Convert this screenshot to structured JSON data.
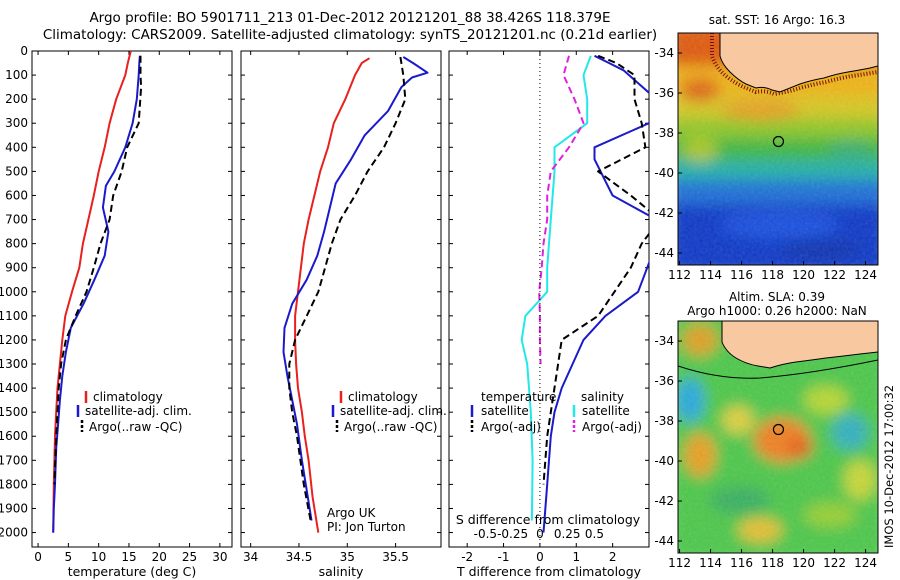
{
  "figure": {
    "title_line1": "Argo profile: BO 5901711_213 01-Dec-2012 20121201_88 38.426S 118.379E",
    "title_line2": "Climatology: CARS2009. Satellite-adjusted climatology: synTS_20121201.nc (0.21d earlier)",
    "credit": "IMOS 10-Dec-2012 17:00:32"
  },
  "colors": {
    "climatology": "#e8201e",
    "satellite": "#1a1acc",
    "argo": "#000000",
    "satellite_salinity": "#22e8e8",
    "argo_salinity_diff": "#e020e0",
    "land": "#f8c8a0"
  },
  "chart_data": [
    {
      "type": "line",
      "panel": "temperature",
      "xlabel": "temperature (deg C)",
      "ylabel": "",
      "xlim": [
        -1,
        32
      ],
      "ylim": [
        2060,
        0
      ],
      "xticks": [
        0,
        5,
        10,
        15,
        20,
        25,
        30
      ],
      "yticks": [
        0,
        100,
        200,
        300,
        400,
        500,
        600,
        700,
        800,
        900,
        1000,
        1100,
        1200,
        1300,
        1400,
        1500,
        1600,
        1700,
        1800,
        1900,
        2000
      ],
      "legend": [
        "climatology",
        "satellite-adj. clim.",
        "Argo(..raw -QC)"
      ],
      "legend_position": "bottom-right",
      "series": [
        {
          "name": "climatology",
          "style": "solid",
          "x": [
            15.3,
            14.8,
            14.4,
            12.9,
            11.8,
            11.0,
            10.0,
            9.2,
            8.3,
            7.4,
            6.8,
            5.6,
            4.5,
            4.0,
            3.6,
            3.2,
            3.0,
            2.8,
            2.6,
            2.5
          ],
          "y": [
            0,
            50,
            100,
            200,
            300,
            400,
            500,
            600,
            700,
            800,
            900,
            1000,
            1100,
            1200,
            1300,
            1400,
            1500,
            1600,
            1800,
            2000
          ]
        },
        {
          "name": "satellite-adj. clim.",
          "style": "solid",
          "x": [
            16.8,
            16.7,
            16.6,
            16.3,
            15.6,
            14.4,
            12.6,
            11.2,
            10.7,
            11.6,
            11.0,
            9.3,
            7.5,
            5.4,
            4.6,
            4.0,
            3.6,
            3.3,
            3.0,
            2.8,
            2.6,
            2.5
          ],
          "y": [
            20,
            50,
            100,
            200,
            300,
            400,
            500,
            560,
            650,
            750,
            850,
            950,
            1050,
            1150,
            1250,
            1350,
            1450,
            1550,
            1650,
            1800,
            1900,
            2000
          ]
        },
        {
          "name": "Argo(..raw -QC)",
          "style": "dashed",
          "x": [
            16.9,
            16.9,
            17.0,
            16.6,
            14.7,
            13.8,
            12.4,
            11.8,
            10.3,
            9.2,
            8.0,
            6.2,
            4.6,
            3.8,
            3.4,
            3.2,
            3.0,
            2.7
          ],
          "y": [
            20,
            100,
            150,
            300,
            400,
            500,
            600,
            700,
            800,
            900,
            1000,
            1100,
            1200,
            1300,
            1400,
            1500,
            1600,
            1800
          ]
        }
      ]
    },
    {
      "type": "line",
      "panel": "salinity",
      "xlabel": "salinity",
      "ylabel": "",
      "xlim": [
        33.9,
        35.97
      ],
      "ylim": [
        2060,
        0
      ],
      "xticks": [
        34,
        34.5,
        35,
        35.5
      ],
      "legend": [
        "climatology",
        "satellite-adj. clim.",
        "Argo(..raw -QC)"
      ],
      "legend_position": "bottom-right",
      "annotations": [
        "Argo UK",
        "PI: Jon Turton"
      ],
      "series": [
        {
          "name": "climatology",
          "style": "solid",
          "x": [
            35.23,
            35.15,
            35.08,
            34.98,
            34.86,
            34.8,
            34.72,
            34.66,
            34.6,
            34.55,
            34.52,
            34.49,
            34.46,
            34.46,
            34.47,
            34.49,
            34.53,
            34.56,
            34.6,
            34.64,
            34.7
          ],
          "y": [
            30,
            50,
            100,
            200,
            300,
            400,
            500,
            600,
            700,
            800,
            900,
            1000,
            1100,
            1200,
            1300,
            1400,
            1500,
            1600,
            1700,
            1850,
            2000
          ]
        },
        {
          "name": "satellite-adj. clim.",
          "style": "solid",
          "x": [
            35.58,
            35.68,
            35.83,
            35.67,
            35.56,
            35.42,
            35.18,
            35.04,
            34.88,
            34.82,
            34.76,
            34.69,
            34.58,
            34.43,
            34.35,
            34.34,
            34.38,
            34.43,
            34.48,
            34.53,
            34.59,
            34.63
          ],
          "y": [
            25,
            50,
            90,
            110,
            150,
            250,
            350,
            450,
            550,
            650,
            750,
            850,
            950,
            1050,
            1150,
            1250,
            1350,
            1450,
            1550,
            1700,
            1850,
            1950
          ]
        },
        {
          "name": "Argo(..raw -QC)",
          "style": "dashed",
          "x": [
            35.55,
            35.58,
            35.6,
            35.5,
            35.38,
            35.21,
            35.08,
            34.93,
            34.84,
            34.77,
            34.7,
            34.58,
            34.46,
            34.4,
            34.4,
            34.43,
            34.48,
            34.55,
            34.62
          ],
          "y": [
            25,
            100,
            200,
            300,
            400,
            500,
            600,
            700,
            800,
            900,
            1000,
            1100,
            1200,
            1300,
            1400,
            1500,
            1600,
            1800,
            1950
          ]
        }
      ]
    },
    {
      "type": "line",
      "panel": "difference",
      "xlabel": "T difference from climatology",
      "top_xlabel": "S difference from climatology",
      "xlim": [
        -2.5,
        3.0
      ],
      "ylim": [
        2060,
        0
      ],
      "xticks": [
        -2,
        -1,
        0,
        1,
        2
      ],
      "top_xticks": [
        "-0.5",
        "-0.25",
        "0",
        "0.25",
        "0.5"
      ],
      "legend_title_temperature": "temperature",
      "legend_title_salinity": "salinity",
      "legend": [
        "satellite",
        "Argo(-adj)",
        "satellite",
        "Argo(-adj)"
      ],
      "legend_position": "bottom-right",
      "series": [
        {
          "name": "satellite",
          "group": "temperature",
          "style": "solid",
          "x": [
            1.5,
            1.9,
            2.3,
            3.2,
            3.0,
            1.5,
            1.5,
            2.0,
            3.2,
            3.2,
            2.7,
            1.8,
            1.2,
            0.9,
            0.6,
            0.4,
            0.3,
            0.2,
            0.1
          ],
          "y": [
            20,
            50,
            80,
            200,
            300,
            400,
            450,
            600,
            700,
            800,
            1000,
            1100,
            1200,
            1300,
            1400,
            1500,
            1600,
            1800,
            2000
          ]
        },
        {
          "name": "Argo(-adj)",
          "group": "temperature",
          "style": "dashed",
          "x": [
            1.6,
            2.1,
            2.6,
            2.6,
            2.8,
            2.9,
            1.6,
            2.5,
            3.3,
            2.8,
            2.5,
            1.6,
            0.6,
            0.5,
            0.3,
            0.2,
            0.1
          ],
          "y": [
            20,
            50,
            100,
            200,
            300,
            400,
            500,
            600,
            700,
            800,
            900,
            1100,
            1200,
            1300,
            1500,
            1600,
            1800
          ]
        },
        {
          "name": "satellite",
          "group": "salinity",
          "style": "solid",
          "x": [
            1.4,
            1.2,
            1.3,
            1.3,
            0.4,
            0.4,
            0.3,
            0.25,
            0.2,
            0.2,
            -0.4,
            -0.5,
            -0.35,
            -0.25,
            -0.2,
            -0.22
          ],
          "y": [
            20,
            100,
            200,
            300,
            400,
            500,
            700,
            800,
            900,
            1000,
            1100,
            1200,
            1300,
            1500,
            1700,
            1950
          ]
        },
        {
          "name": "Argo(-adj)",
          "group": "salinity",
          "style": "dashed",
          "x": [
            0.8,
            0.65,
            0.95,
            1.2,
            0.8,
            0.3,
            0.2,
            0.2,
            0.1,
            0.05,
            -0.02,
            0.0,
            0.0,
            0.02
          ],
          "y": [
            20,
            100,
            200,
            300,
            400,
            500,
            600,
            700,
            800,
            900,
            1000,
            1100,
            1200,
            1300
          ]
        }
      ]
    },
    {
      "type": "heatmap",
      "panel": "sst_map",
      "title": "sat. SST: 16  Argo: 16.3",
      "xticks": [
        112,
        114,
        116,
        118,
        120,
        122,
        124
      ],
      "yticks": [
        -34,
        -36,
        -38,
        -40,
        -42,
        -44
      ],
      "xlim": [
        111.9,
        124.8
      ],
      "ylim": [
        -44.6,
        -33.0
      ],
      "marker": {
        "lon": 118.379,
        "lat": -38.426
      },
      "field": "sea surface temperature"
    },
    {
      "type": "heatmap",
      "panel": "sla_map",
      "title_line1": "Altim. SLA: 0.39",
      "title_line2": "Argo h1000: 0.26  h2000: NaN",
      "xticks": [
        112,
        114,
        116,
        118,
        120,
        122,
        124
      ],
      "yticks": [
        -34,
        -36,
        -38,
        -40,
        -42,
        -44
      ],
      "xlim": [
        111.9,
        124.8
      ],
      "ylim": [
        -44.6,
        -33.0
      ],
      "marker": {
        "lon": 118.379,
        "lat": -38.426
      },
      "field": "sea level anomaly"
    }
  ]
}
